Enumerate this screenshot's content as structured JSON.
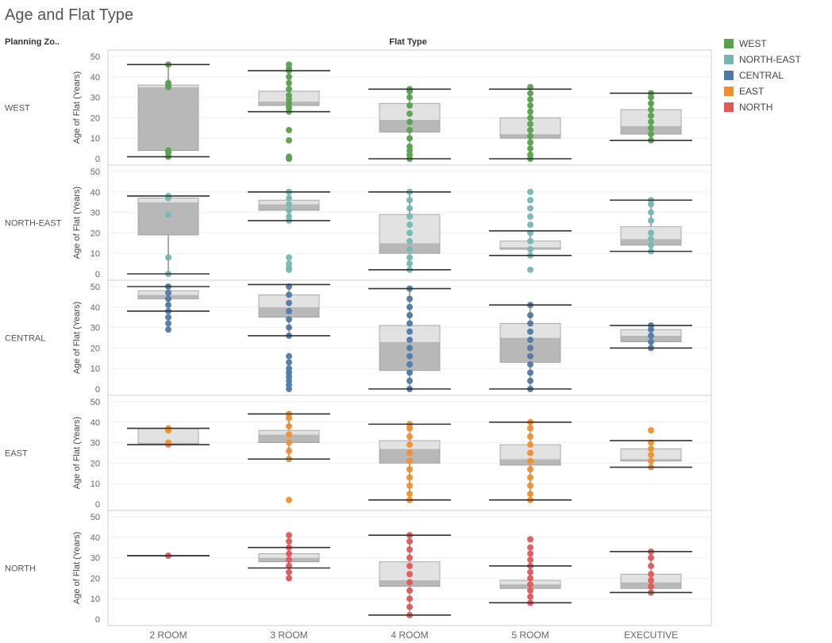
{
  "title": "Age and Flat Type",
  "row_header": "Planning Zo..",
  "col_header": "Flat Type",
  "chart_data": {
    "type": "boxplot",
    "title": "Age and Flat Type",
    "xlabel": "Flat Type",
    "ylabel": "Age of Flat (Years)",
    "categories": [
      "2 ROOM",
      "3 ROOM",
      "4 ROOM",
      "5 ROOM",
      "EXECUTIVE"
    ],
    "ylim": [
      0,
      50
    ],
    "yticks": [
      0,
      10,
      20,
      30,
      40,
      50
    ],
    "legend_position": "right",
    "rows": [
      {
        "zone": "WEST",
        "color": "#59a14f",
        "boxes": [
          {
            "whisker_low": 1,
            "q1": 4,
            "median": 35,
            "q3": 36,
            "whisker_high": 46,
            "points": [
              1,
              3,
              4,
              35,
              36,
              37,
              46
            ]
          },
          {
            "whisker_low": 23,
            "q1": 26,
            "median": 28,
            "q3": 33,
            "whisker_high": 43,
            "points": [
              0,
              1,
              9,
              14,
              23,
              25,
              27,
              29,
              31,
              34,
              37,
              40,
              43,
              44,
              46
            ]
          },
          {
            "whisker_low": 0,
            "q1": 13,
            "median": 19,
            "q3": 27,
            "whisker_high": 34,
            "points": [
              0,
              2,
              4,
              6,
              10,
              14,
              18,
              22,
              26,
              30,
              33,
              34
            ]
          },
          {
            "whisker_low": 0,
            "q1": 10,
            "median": 12,
            "q3": 20,
            "whisker_high": 34,
            "points": [
              0,
              2,
              5,
              8,
              11,
              14,
              17,
              20,
              23,
              26,
              29,
              32,
              35
            ]
          },
          {
            "whisker_low": 9,
            "q1": 12,
            "median": 16,
            "q3": 24,
            "whisker_high": 32,
            "points": [
              9,
              12,
              15,
              18,
              21,
              24,
              27,
              30,
              32
            ]
          }
        ]
      },
      {
        "zone": "NORTH-EAST",
        "color": "#76b7b2",
        "boxes": [
          {
            "whisker_low": 0,
            "q1": 19,
            "median": 35,
            "q3": 37,
            "whisker_high": 38,
            "points": [
              0,
              8,
              29,
              37,
              38
            ]
          },
          {
            "whisker_low": 26,
            "q1": 31,
            "median": 34,
            "q3": 36,
            "whisker_high": 40,
            "points": [
              2,
              3,
              5,
              8,
              26,
              28,
              31,
              34,
              37,
              40
            ]
          },
          {
            "whisker_low": 2,
            "q1": 10,
            "median": 15,
            "q3": 29,
            "whisker_high": 40,
            "points": [
              2,
              5,
              8,
              12,
              16,
              20,
              24,
              28,
              32,
              36,
              40
            ]
          },
          {
            "whisker_low": 9,
            "q1": 12,
            "median": 13,
            "q3": 16,
            "whisker_high": 21,
            "points": [
              2,
              9,
              12,
              16,
              20,
              24,
              28,
              32,
              36,
              40
            ]
          },
          {
            "whisker_low": 11,
            "q1": 14,
            "median": 17,
            "q3": 23,
            "whisker_high": 36,
            "points": [
              11,
              14,
              17,
              20,
              26,
              30,
              34,
              36
            ]
          }
        ]
      },
      {
        "zone": "CENTRAL",
        "color": "#4e79a7",
        "boxes": [
          {
            "whisker_low": 38,
            "q1": 44,
            "median": 46,
            "q3": 48,
            "whisker_high": 50,
            "points": [
              29,
              32,
              35,
              38,
              41,
              44,
              47,
              50
            ]
          },
          {
            "whisker_low": 26,
            "q1": 35,
            "median": 40,
            "q3": 46,
            "whisker_high": 51,
            "points": [
              0,
              2,
              4,
              6,
              8,
              10,
              13,
              16,
              26,
              30,
              34,
              38,
              42,
              46,
              50
            ]
          },
          {
            "whisker_low": 0,
            "q1": 9,
            "median": 23,
            "q3": 31,
            "whisker_high": 49,
            "points": [
              0,
              4,
              8,
              12,
              16,
              20,
              24,
              28,
              32,
              36,
              40,
              44,
              49
            ]
          },
          {
            "whisker_low": 0,
            "q1": 13,
            "median": 25,
            "q3": 32,
            "whisker_high": 41,
            "points": [
              0,
              4,
              8,
              12,
              16,
              20,
              24,
              28,
              32,
              36,
              41
            ]
          },
          {
            "whisker_low": 20,
            "q1": 23,
            "median": 26,
            "q3": 29,
            "whisker_high": 31,
            "points": [
              20,
              23,
              26,
              29,
              31
            ]
          }
        ]
      },
      {
        "zone": "EAST",
        "color": "#f28e2b",
        "boxes": [
          {
            "whisker_low": 29,
            "q1": 29,
            "median": 30,
            "q3": 37,
            "whisker_high": 37,
            "points": [
              29,
              30,
              36,
              37
            ]
          },
          {
            "whisker_low": 22,
            "q1": 30,
            "median": 34,
            "q3": 36,
            "whisker_high": 44,
            "points": [
              2,
              22,
              26,
              30,
              34,
              38,
              42,
              44
            ]
          },
          {
            "whisker_low": 2,
            "q1": 20,
            "median": 27,
            "q3": 31,
            "whisker_high": 39,
            "points": [
              2,
              5,
              9,
              13,
              17,
              21,
              25,
              29,
              33,
              37,
              39
            ]
          },
          {
            "whisker_low": 2,
            "q1": 19,
            "median": 22,
            "q3": 29,
            "whisker_high": 40,
            "points": [
              2,
              5,
              9,
              13,
              17,
              21,
              25,
              29,
              33,
              37,
              40
            ]
          },
          {
            "whisker_low": 18,
            "q1": 21,
            "median": 22,
            "q3": 27,
            "whisker_high": 31,
            "points": [
              18,
              21,
              24,
              27,
              30,
              36
            ]
          }
        ]
      },
      {
        "zone": "NORTH",
        "color": "#e15759",
        "boxes": [
          {
            "whisker_low": 31,
            "q1": 31,
            "median": 31,
            "q3": 31,
            "whisker_high": 31,
            "points": [
              31
            ]
          },
          {
            "whisker_low": 25,
            "q1": 28,
            "median": 30,
            "q3": 32,
            "whisker_high": 35,
            "points": [
              20,
              23,
              26,
              29,
              32,
              35,
              38,
              41
            ]
          },
          {
            "whisker_low": 2,
            "q1": 16,
            "median": 19,
            "q3": 28,
            "whisker_high": 41,
            "points": [
              2,
              6,
              10,
              14,
              18,
              22,
              26,
              30,
              34,
              38,
              41
            ]
          },
          {
            "whisker_low": 8,
            "q1": 15,
            "median": 17,
            "q3": 19,
            "whisker_high": 26,
            "points": [
              8,
              11,
              14,
              17,
              20,
              23,
              26,
              29,
              32,
              35,
              39
            ]
          },
          {
            "whisker_low": 13,
            "q1": 15,
            "median": 18,
            "q3": 22,
            "whisker_high": 33,
            "points": [
              13,
              16,
              19,
              22,
              26,
              30,
              33
            ]
          }
        ]
      }
    ]
  },
  "legend": [
    {
      "label": "WEST",
      "color": "#59a14f"
    },
    {
      "label": "NORTH-EAST",
      "color": "#76b7b2"
    },
    {
      "label": "CENTRAL",
      "color": "#4e79a7"
    },
    {
      "label": "EAST",
      "color": "#f28e2b"
    },
    {
      "label": "NORTH",
      "color": "#e15759"
    }
  ]
}
